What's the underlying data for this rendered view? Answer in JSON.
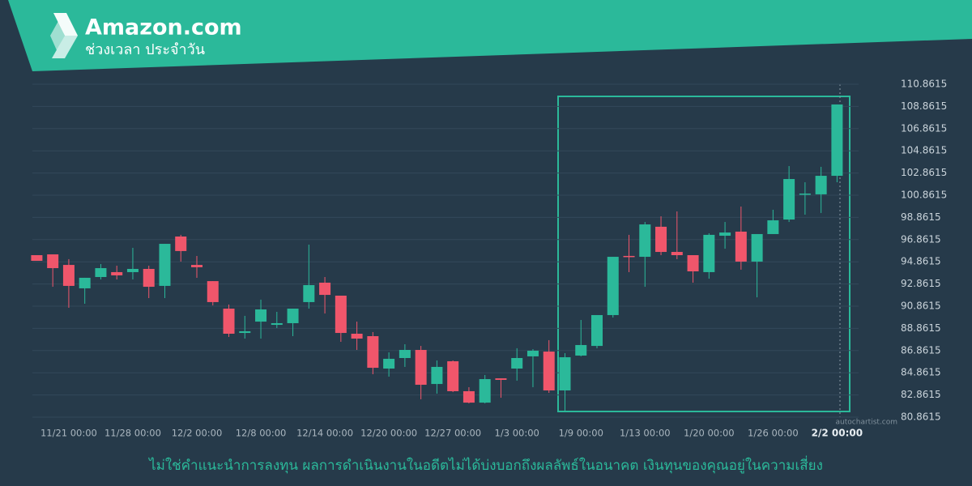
{
  "chart_data": {
    "type": "candlestick",
    "title": "Amazon.com",
    "subtitle": "ช่วงเวลา ประจำวัน",
    "note": "ไม่ใช่คำแนะนำการลงทุน ผลการดำเนินงานในอดีตไม่ได้บ่งบอกถึงผลลัพธ์ในอนาคต เงินทุนของคุณอยู่ในความเสี่ยง",
    "source": "autochartist.com",
    "up_color": "#2bb99a",
    "down_color": "#f0566b",
    "grid": true,
    "ylim": [
      80.8615,
      110.8615
    ],
    "yticks": [
      80.8615,
      82.8615,
      84.8615,
      86.8615,
      88.8615,
      90.8615,
      92.8615,
      94.8615,
      96.8615,
      98.8615,
      100.8615,
      102.8615,
      104.8615,
      106.8615,
      108.8615,
      110.8615
    ],
    "categories": [
      null,
      null,
      "11/21 00:00",
      null,
      null,
      null,
      "11/28 00:00",
      null,
      null,
      null,
      "12/2 00:00",
      null,
      null,
      null,
      "12/8 00:00",
      null,
      null,
      null,
      "12/14 00:00",
      null,
      null,
      null,
      "12/20 00:00",
      null,
      null,
      null,
      "12/27 00:00",
      null,
      null,
      null,
      "1/3 00:00",
      null,
      null,
      null,
      "1/9 00:00",
      null,
      null,
      null,
      "1/13 00:00",
      null,
      null,
      null,
      "1/20 00:00",
      null,
      null,
      null,
      "1/26 00:00",
      null,
      null,
      null,
      "2/2 00:00"
    ],
    "open": [
      95.46,
      95.53,
      94.58,
      92.47,
      93.49,
      93.93,
      93.93,
      94.22,
      92.69,
      97.14,
      94.58,
      93.12,
      90.64,
      88.45,
      89.47,
      89.18,
      89.33,
      91.23,
      92.98,
      91.81,
      88.38,
      88.16,
      85.24,
      86.19,
      86.92,
      83.85,
      85.9,
      83.2,
      82.17,
      84.36,
      85.24,
      86.34,
      86.77,
      83.27,
      86.41,
      87.28,
      90.06,
      95.39,
      95.31,
      98.02,
      95.75,
      95.46,
      93.93,
      97.21,
      97.58,
      94.88,
      97.36,
      98.67,
      100.94,
      100.94,
      102.61
    ],
    "high": [
      95.46,
      95.53,
      95.1,
      93.42,
      94.66,
      94.51,
      96.12,
      94.51,
      96.48,
      97.29,
      95.39,
      93.12,
      91.01,
      89.99,
      91.45,
      90.35,
      90.64,
      96.41,
      93.49,
      91.81,
      89.47,
      88.53,
      86.7,
      87.43,
      87.28,
      85.97,
      85.97,
      83.56,
      84.66,
      84.36,
      87.07,
      86.99,
      87.8,
      86.63,
      89.62,
      90.06,
      95.31,
      97.29,
      98.45,
      98.96,
      99.4,
      95.46,
      97.43,
      98.45,
      99.84,
      97.36,
      99.55,
      103.49,
      102.03,
      103.42,
      109.04
    ],
    "low": [
      94.95,
      92.61,
      90.72,
      91.08,
      93.27,
      93.27,
      93.27,
      91.59,
      91.59,
      94.88,
      93.42,
      90.93,
      88.09,
      87.94,
      87.94,
      88.89,
      88.16,
      90.64,
      90.2,
      87.65,
      86.92,
      84.73,
      84.51,
      85.39,
      82.47,
      82.98,
      83.12,
      82.1,
      82.1,
      82.61,
      84.15,
      83.56,
      83.05,
      81.44,
      86.34,
      87.07,
      89.84,
      93.93,
      92.61,
      95.46,
      95.1,
      92.98,
      93.34,
      96.04,
      94.15,
      91.66,
      97.36,
      98.45,
      99.11,
      99.26,
      102.03
    ],
    "close": [
      94.95,
      94.29,
      92.69,
      93.42,
      94.29,
      93.64,
      94.22,
      92.61,
      96.48,
      95.83,
      94.37,
      91.23,
      88.38,
      88.6,
      90.57,
      89.33,
      90.64,
      92.76,
      91.88,
      88.45,
      87.94,
      85.31,
      86.12,
      86.92,
      83.78,
      85.39,
      83.2,
      82.17,
      84.29,
      84.22,
      86.19,
      86.85,
      83.27,
      86.26,
      87.36,
      90.06,
      95.31,
      95.31,
      98.23,
      95.75,
      95.46,
      94.0,
      97.29,
      97.5,
      94.88,
      97.36,
      98.6,
      102.32,
      101.01,
      102.61,
      109.04
    ]
  }
}
